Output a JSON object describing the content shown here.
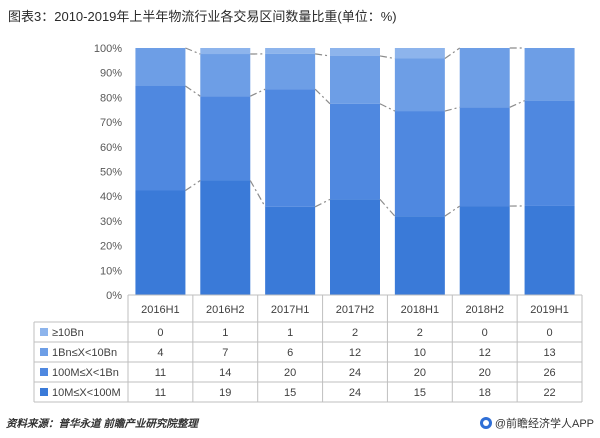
{
  "title": "图表3：2010-2019年上半年物流行业各交易区间数量比重(单位：%)",
  "footer": {
    "source": "资料来源：普华永道 前瞻产业研究院整理",
    "brand": "@前瞻经济学人APP"
  },
  "colors": {
    "s_10bn": "#8db4ec",
    "s_1bn_10bn": "#6d9ee6",
    "s_100m_1bn": "#4f88e0",
    "s_10m_100m": "#3a7ad8",
    "axis": "#bfbfbf",
    "dash": "#8c8c8c"
  },
  "chart_data": {
    "type": "bar",
    "stacked": "percent",
    "categories": [
      "2016H1",
      "2016H2",
      "2017H1",
      "2017H2",
      "2018H1",
      "2018H2",
      "2019H1"
    ],
    "y_ticks": [
      "0%",
      "10%",
      "20%",
      "30%",
      "40%",
      "50%",
      "60%",
      "70%",
      "80%",
      "90%",
      "100%"
    ],
    "ylim": [
      0,
      100
    ],
    "series": [
      {
        "name": "≥10Bn",
        "values": [
          0,
          1,
          1,
          2,
          2,
          0,
          0
        ]
      },
      {
        "name": "1Bn≤X<10Bn",
        "values": [
          4,
          7,
          6,
          12,
          10,
          12,
          13
        ]
      },
      {
        "name": "100M≤X<1Bn",
        "values": [
          11,
          14,
          20,
          24,
          20,
          20,
          26
        ]
      },
      {
        "name": "10M≤X<100M",
        "values": [
          11,
          19,
          15,
          24,
          15,
          18,
          22
        ]
      }
    ],
    "data_table": true,
    "series_connector_lines": "dash-dot"
  }
}
